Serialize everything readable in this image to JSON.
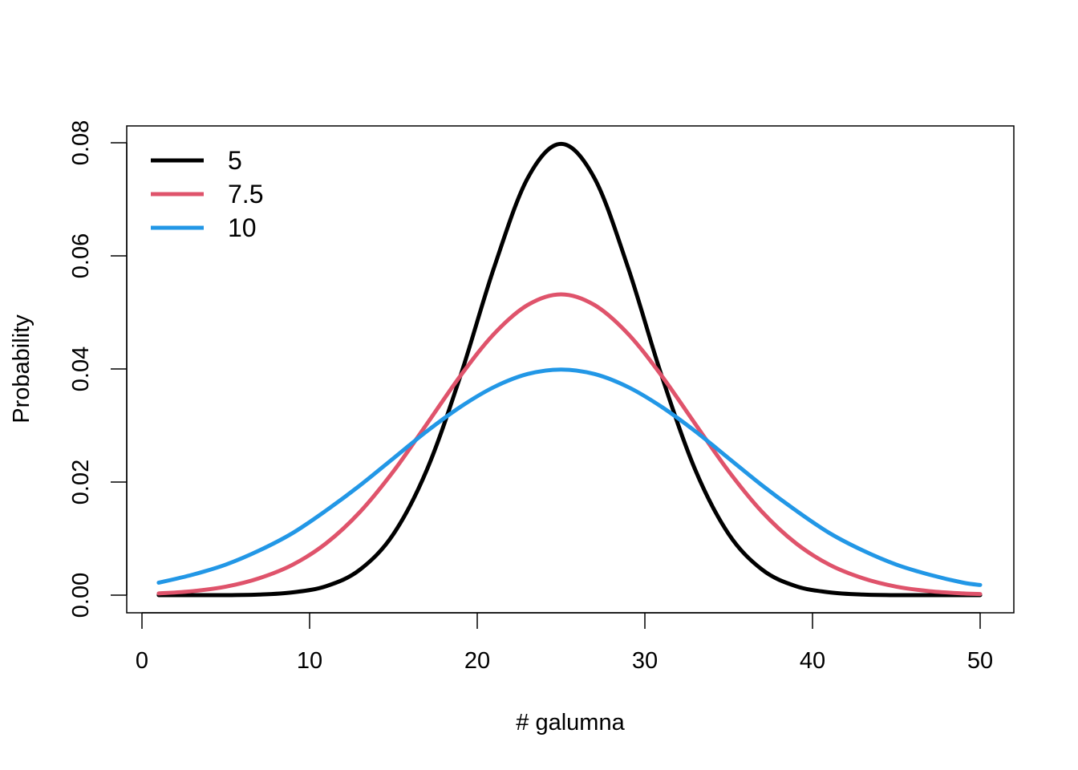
{
  "chart_data": {
    "type": "line",
    "title": "",
    "xlabel": "# galumna",
    "ylabel": "Probability",
    "xlim": [
      0,
      50
    ],
    "ylim": [
      0,
      0.08
    ],
    "x_ticks": [
      "0",
      "10",
      "20",
      "30",
      "40",
      "50"
    ],
    "y_ticks": [
      "0.00",
      "0.02",
      "0.04",
      "0.06",
      "0.08"
    ],
    "grid": false,
    "legend_position": "top-left",
    "x": [
      1,
      3,
      5,
      7,
      9,
      11,
      13,
      15,
      17,
      19,
      21,
      23,
      25,
      27,
      29,
      31,
      33,
      35,
      37,
      39,
      41,
      43,
      45,
      47,
      49,
      50
    ],
    "series": [
      {
        "name": "5",
        "color": "#000000",
        "values": [
          0.0,
          0.0,
          0.0,
          0.0001,
          0.0005,
          0.0016,
          0.0045,
          0.0108,
          0.0222,
          0.0388,
          0.0579,
          0.0737,
          0.0798,
          0.0737,
          0.0579,
          0.0388,
          0.0222,
          0.0108,
          0.0045,
          0.0016,
          0.0005,
          0.0001,
          0.0,
          0.0,
          0.0,
          0.0
        ]
      },
      {
        "name": "7.5",
        "color": "#DF536B",
        "values": [
          0.0003,
          0.0007,
          0.0015,
          0.003,
          0.0054,
          0.0092,
          0.0147,
          0.0219,
          0.0303,
          0.0388,
          0.0462,
          0.0513,
          0.0532,
          0.0513,
          0.0462,
          0.0388,
          0.0303,
          0.0219,
          0.0147,
          0.0092,
          0.0054,
          0.003,
          0.0015,
          0.0007,
          0.0003,
          0.0002
        ]
      },
      {
        "name": "10",
        "color": "#2297E6",
        "values": [
          0.0022,
          0.0036,
          0.0054,
          0.0079,
          0.011,
          0.015,
          0.0194,
          0.0242,
          0.029,
          0.0333,
          0.0368,
          0.0391,
          0.0399,
          0.0391,
          0.0368,
          0.0333,
          0.029,
          0.0242,
          0.0194,
          0.015,
          0.011,
          0.0079,
          0.0054,
          0.0036,
          0.0022,
          0.0018
        ]
      }
    ]
  }
}
